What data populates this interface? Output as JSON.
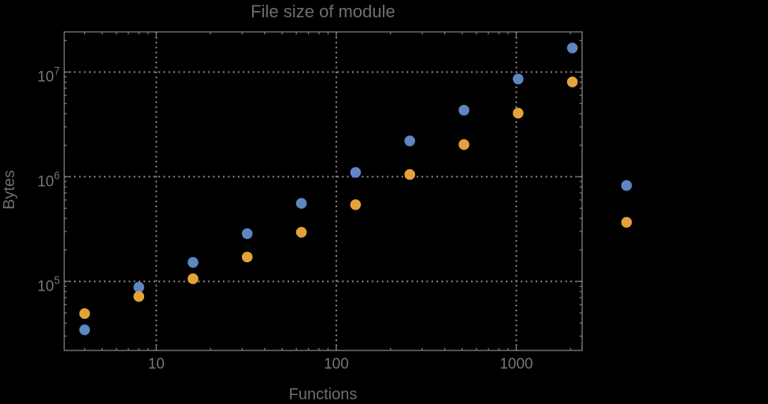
{
  "title": "File size of module",
  "axes": {
    "xlabel": "Functions",
    "ylabel": "Bytes"
  },
  "colors": {
    "background": "#000000",
    "frame": "#7b7b7b",
    "grid": "#8f8f8f",
    "tick_label": "#767676",
    "axis_label": "#6f6f6f",
    "series_blue": "#5e86c2",
    "series_orange": "#e5a23b"
  },
  "chart_data": {
    "type": "scatter",
    "title": "File size of module",
    "xlabel": "Functions",
    "ylabel": "Bytes",
    "xscale": "log",
    "yscale": "log",
    "grid": "dotted",
    "legend": "none",
    "marker": "filled-circle",
    "xlim": [
      3.08,
      2320
    ],
    "ylim": [
      21900,
      24200000
    ],
    "xticks": {
      "values": [
        10,
        100,
        1000
      ],
      "labels": [
        "10",
        "100",
        "1000"
      ]
    },
    "yticks": {
      "values": [
        100000,
        1000000,
        10000000
      ],
      "base": "10",
      "exponents": [
        "5",
        "6",
        "7"
      ]
    },
    "x": [
      4,
      8,
      16,
      32,
      64,
      128,
      256,
      512,
      1024,
      2048,
      4096
    ],
    "series": [
      {
        "name": "blue",
        "color_key": "series_blue",
        "values": [
          34500,
          88000,
          152000,
          286000,
          557000,
          1100000,
          2200000,
          4320000,
          8590000,
          17000000,
          825000
        ]
      },
      {
        "name": "orange",
        "color_key": "series_orange",
        "values": [
          49300,
          71800,
          106000,
          171000,
          295000,
          541000,
          1050000,
          2030000,
          4050000,
          8050000,
          367000
        ]
      }
    ]
  }
}
